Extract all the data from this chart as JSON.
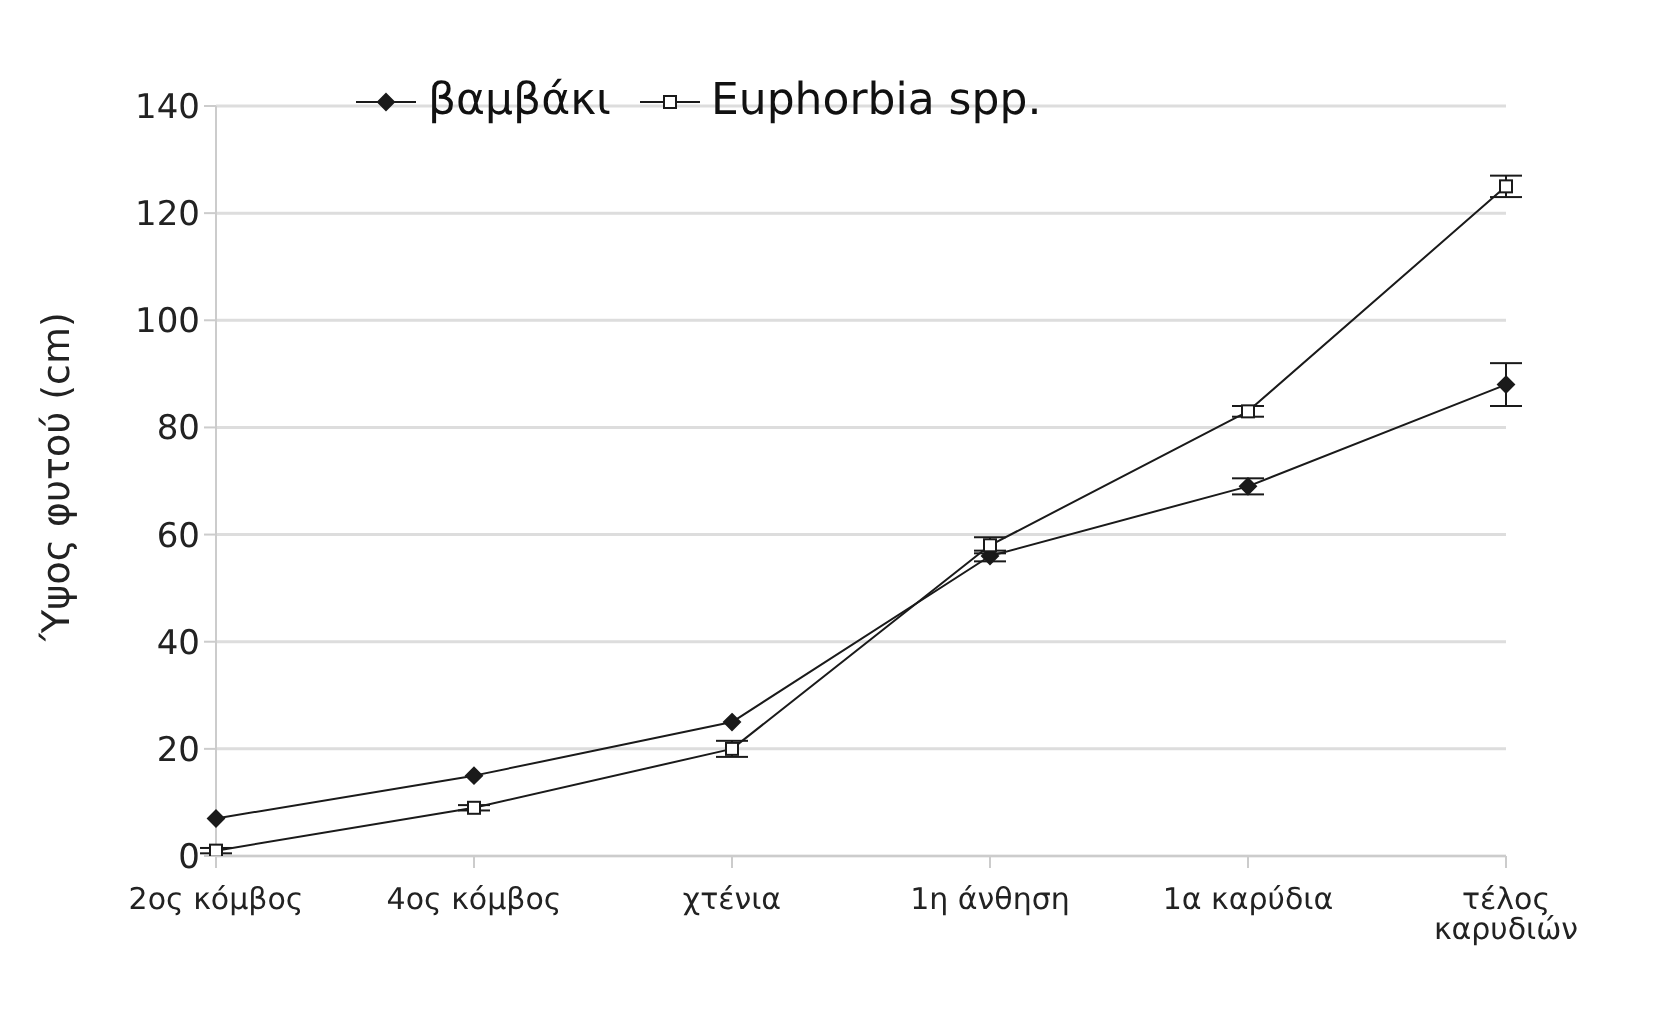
{
  "chart_data": {
    "type": "line",
    "ylabel": "Ύψος φυτού (cm)",
    "categories": [
      "2ος κόμβος",
      "4ος κόμβος",
      "χτένια",
      "1η άνθηση",
      "1α καρύδια",
      "τέλος καρυδιών"
    ],
    "series": [
      {
        "name": "βαμβάκι",
        "color": "#1a1a1a",
        "marker": "diamond",
        "values": [
          7,
          15,
          25,
          56,
          69,
          88
        ],
        "errors": [
          null,
          null,
          null,
          1,
          1.5,
          4
        ]
      },
      {
        "name": "Euphorbia spp.",
        "color": "#1a1a1a",
        "marker": "square",
        "values": [
          1,
          9,
          20,
          58,
          83,
          125
        ],
        "errors": [
          0.5,
          0.5,
          1.5,
          1.5,
          1,
          2
        ]
      }
    ],
    "ylim": [
      0,
      140
    ],
    "yticks": [
      0,
      20,
      40,
      60,
      80,
      100,
      120,
      140
    ],
    "grid": "y",
    "legend": "top left",
    "line_style": "solid"
  }
}
